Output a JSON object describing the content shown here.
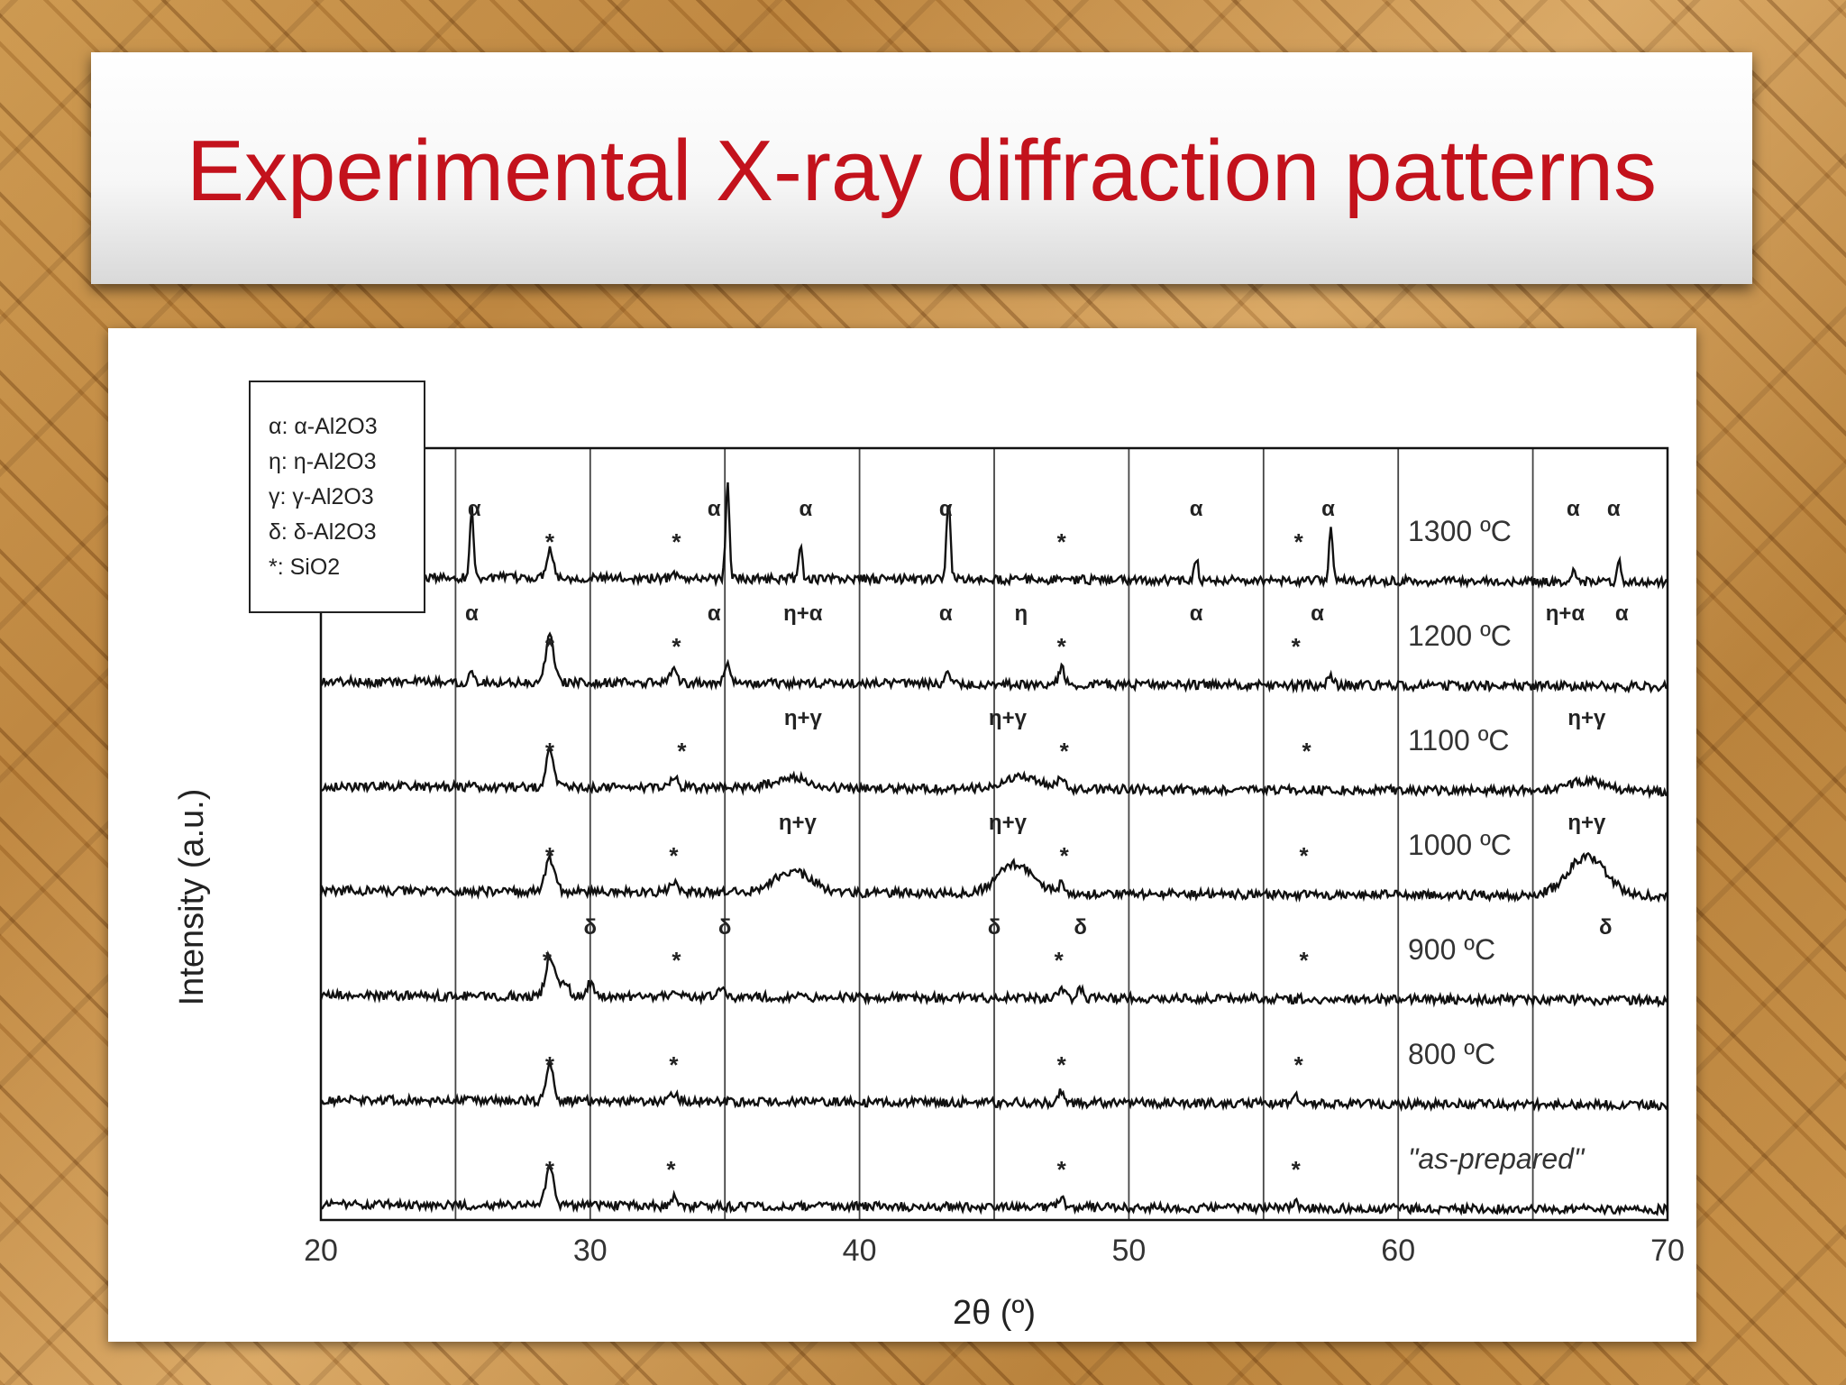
{
  "slide": {
    "title": "Experimental X-ray diffraction patterns"
  },
  "colors": {
    "title": "#c3121c",
    "trace": "#111111",
    "grid": "#333333"
  },
  "chart_data": {
    "type": "line",
    "xlabel": "2θ (º)",
    "ylabel": "Intensity (a.u.)",
    "xlim": [
      20,
      70
    ],
    "xticks": [
      "20",
      "30",
      "40",
      "50",
      "60",
      "70"
    ],
    "xtick_values": [
      20,
      30,
      40,
      50,
      60,
      70
    ],
    "gridlines_x": [
      25,
      30,
      35,
      40,
      45,
      50,
      55,
      60,
      65
    ],
    "legend": [
      "α: α-Al2O3",
      "η: η-Al2O3",
      "γ: γ-Al2O3",
      "δ: δ-Al2O3",
      "*: SiO2"
    ],
    "series": [
      {
        "name": "1300 ºC",
        "baseline": 0.0,
        "peaks": [
          [
            25.6,
            4.2,
            0.1
          ],
          [
            28.5,
            1.8,
            0.18
          ],
          [
            33.1,
            0.4,
            0.15
          ],
          [
            35.1,
            5.8,
            0.1
          ],
          [
            37.8,
            2.0,
            0.1
          ],
          [
            43.3,
            5.0,
            0.1
          ],
          [
            52.5,
            1.4,
            0.1
          ],
          [
            57.5,
            3.4,
            0.1
          ],
          [
            66.5,
            0.8,
            0.1
          ],
          [
            68.2,
            1.5,
            0.1
          ]
        ],
        "annotations": [
          {
            "label": "α",
            "x": 25.7
          },
          {
            "label": "*",
            "x": 28.5
          },
          {
            "label": "*",
            "x": 33.2
          },
          {
            "label": "α",
            "x": 34.6
          },
          {
            "label": "α",
            "x": 38.0
          },
          {
            "label": "α",
            "x": 43.2
          },
          {
            "label": "*",
            "x": 47.5
          },
          {
            "label": "α",
            "x": 52.5
          },
          {
            "label": "*",
            "x": 56.3
          },
          {
            "label": "α",
            "x": 57.4
          },
          {
            "label": "α",
            "x": 66.5
          },
          {
            "label": "α",
            "x": 68.0
          }
        ]
      },
      {
        "name": "1200 ºC",
        "baseline": -1.0,
        "peaks": [
          [
            25.6,
            0.8,
            0.12
          ],
          [
            28.5,
            3.2,
            0.2
          ],
          [
            33.1,
            1.0,
            0.18
          ],
          [
            35.1,
            1.2,
            0.15
          ],
          [
            43.3,
            0.6,
            0.15
          ],
          [
            47.5,
            1.0,
            0.15
          ],
          [
            57.5,
            0.5,
            0.15
          ]
        ],
        "annotations": [
          {
            "label": "α",
            "x": 25.6
          },
          {
            "label": "*",
            "x": 28.5
          },
          {
            "label": "*",
            "x": 33.2
          },
          {
            "label": "α",
            "x": 34.6
          },
          {
            "label": "η+α",
            "x": 37.9
          },
          {
            "label": "α",
            "x": 43.2
          },
          {
            "label": "η",
            "x": 46.0
          },
          {
            "label": "*",
            "x": 47.5
          },
          {
            "label": "α",
            "x": 52.5
          },
          {
            "label": "*",
            "x": 56.2
          },
          {
            "label": "α",
            "x": 57.0
          },
          {
            "label": "η+α",
            "x": 66.2
          },
          {
            "label": "α",
            "x": 68.3
          }
        ]
      },
      {
        "name": "1100 ºC",
        "baseline": -2.0,
        "peaks": [
          [
            28.5,
            2.4,
            0.2
          ],
          [
            33.1,
            0.6,
            0.2
          ],
          [
            37.5,
            0.7,
            0.9
          ],
          [
            46.0,
            0.8,
            0.9
          ],
          [
            47.5,
            0.6,
            0.2
          ],
          [
            67.0,
            0.6,
            1.0
          ]
        ],
        "annotations": [
          {
            "label": "*",
            "x": 28.5
          },
          {
            "label": "*",
            "x": 33.4
          },
          {
            "label": "η+γ",
            "x": 37.9
          },
          {
            "label": "η+γ",
            "x": 45.5
          },
          {
            "label": "*",
            "x": 47.6
          },
          {
            "label": "*",
            "x": 56.6
          },
          {
            "label": "η+γ",
            "x": 67.0
          }
        ]
      },
      {
        "name": "1000 ºC",
        "baseline": -3.0,
        "peaks": [
          [
            28.5,
            2.0,
            0.25
          ],
          [
            33.1,
            0.6,
            0.25
          ],
          [
            37.5,
            1.3,
            1.0
          ],
          [
            45.8,
            1.8,
            0.9
          ],
          [
            47.5,
            0.5,
            0.2
          ],
          [
            67.0,
            2.4,
            1.0
          ]
        ],
        "annotations": [
          {
            "label": "*",
            "x": 28.5
          },
          {
            "label": "*",
            "x": 33.1
          },
          {
            "label": "η+γ",
            "x": 37.7
          },
          {
            "label": "η+γ",
            "x": 45.5
          },
          {
            "label": "*",
            "x": 47.6
          },
          {
            "label": "*",
            "x": 56.5
          },
          {
            "label": "η+γ",
            "x": 67.0
          }
        ]
      },
      {
        "name": "900 ºC",
        "baseline": -4.0,
        "peaks": [
          [
            28.5,
            2.5,
            0.22
          ],
          [
            29.0,
            1.0,
            0.25
          ],
          [
            30.0,
            0.8,
            0.2
          ],
          [
            33.1,
            0.5,
            0.2
          ],
          [
            34.9,
            0.5,
            0.2
          ],
          [
            47.5,
            0.7,
            0.15
          ],
          [
            48.2,
            0.6,
            0.15
          ]
        ],
        "annotations": [
          {
            "label": "*",
            "x": 28.4
          },
          {
            "label": "δ",
            "x": 30.0
          },
          {
            "label": "*",
            "x": 33.2
          },
          {
            "label": "δ",
            "x": 35.0
          },
          {
            "label": "δ",
            "x": 45.0
          },
          {
            "label": "*",
            "x": 47.4
          },
          {
            "label": "δ",
            "x": 48.2
          },
          {
            "label": "*",
            "x": 56.5
          },
          {
            "label": "δ",
            "x": 67.7
          }
        ]
      },
      {
        "name": "800 ºC",
        "baseline": -5.0,
        "peaks": [
          [
            28.5,
            2.4,
            0.2
          ],
          [
            33.1,
            0.5,
            0.2
          ],
          [
            47.5,
            0.8,
            0.15
          ],
          [
            56.2,
            0.4,
            0.15
          ]
        ],
        "annotations": [
          {
            "label": "*",
            "x": 28.5
          },
          {
            "label": "*",
            "x": 33.1
          },
          {
            "label": "*",
            "x": 47.5
          },
          {
            "label": "*",
            "x": 56.3
          }
        ]
      },
      {
        "name": "\"as-prepared\"",
        "baseline": -6.0,
        "peaks": [
          [
            28.5,
            2.6,
            0.2
          ],
          [
            33.1,
            0.5,
            0.2
          ],
          [
            47.5,
            0.6,
            0.15
          ],
          [
            56.2,
            0.3,
            0.15
          ]
        ],
        "annotations": [
          {
            "label": "*",
            "x": 28.5
          },
          {
            "label": "*",
            "x": 33.0
          },
          {
            "label": "*",
            "x": 47.5
          },
          {
            "label": "*",
            "x": 56.2
          }
        ]
      }
    ]
  }
}
